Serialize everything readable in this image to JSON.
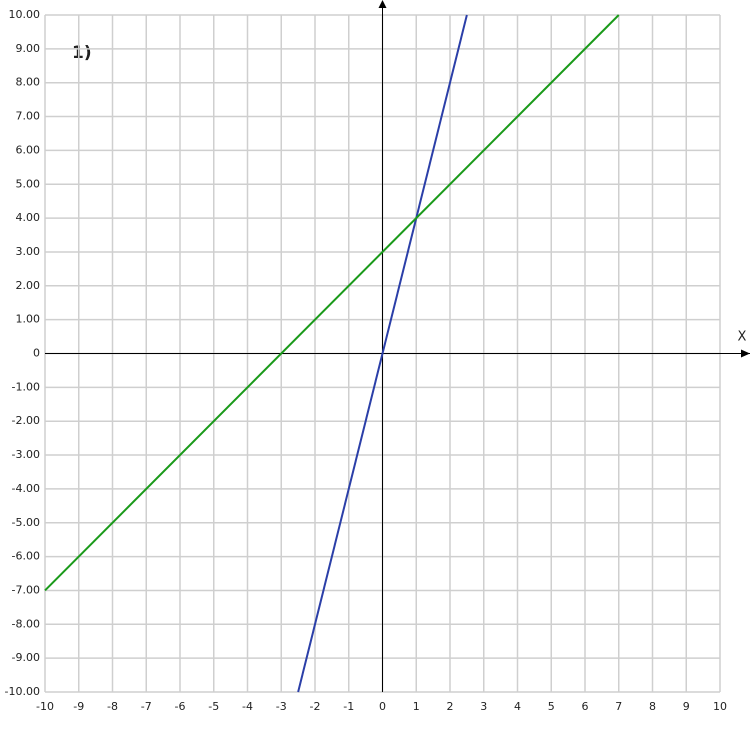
{
  "chart_data": {
    "type": "line",
    "annotation": "1)",
    "x_label": "X",
    "xlim": [
      -10,
      10
    ],
    "ylim": [
      -10,
      10
    ],
    "xticks": [
      -10,
      -9,
      -8,
      -7,
      -6,
      -5,
      -4,
      -3,
      -2,
      -1,
      0,
      1,
      2,
      3,
      4,
      5,
      6,
      7,
      8,
      9,
      10
    ],
    "yticks": [
      {
        "value": 10,
        "label": "10.00"
      },
      {
        "value": 9,
        "label": "9.00"
      },
      {
        "value": 8,
        "label": "8.00"
      },
      {
        "value": 7,
        "label": "7.00"
      },
      {
        "value": 6,
        "label": "6.00"
      },
      {
        "value": 5,
        "label": "5.00"
      },
      {
        "value": 4,
        "label": "4.00"
      },
      {
        "value": 3,
        "label": "3.00"
      },
      {
        "value": 2,
        "label": "2.00"
      },
      {
        "value": 1,
        "label": "1.00"
      },
      0,
      {
        "value": -1,
        "label": "-1.00"
      },
      {
        "value": -2,
        "label": "-2.00"
      },
      {
        "value": -3,
        "label": "-3.00"
      },
      {
        "value": -4,
        "label": "-4.00"
      },
      {
        "value": -5,
        "label": "-5.00"
      },
      {
        "value": -6,
        "label": "-6.00"
      },
      {
        "value": -7,
        "label": "-7.00"
      },
      {
        "value": -8,
        "label": "-8.00"
      },
      {
        "value": -9,
        "label": "-9.00"
      },
      {
        "value": -10,
        "label": "-10.00"
      }
    ],
    "grid": true,
    "series": [
      {
        "color": "#2b3fa8",
        "x": [
          -2.5,
          2.5
        ],
        "values": [
          -10,
          10
        ]
      },
      {
        "color": "#1a9a1a",
        "x": [
          -10,
          7
        ],
        "values": [
          -7,
          10
        ]
      }
    ]
  }
}
